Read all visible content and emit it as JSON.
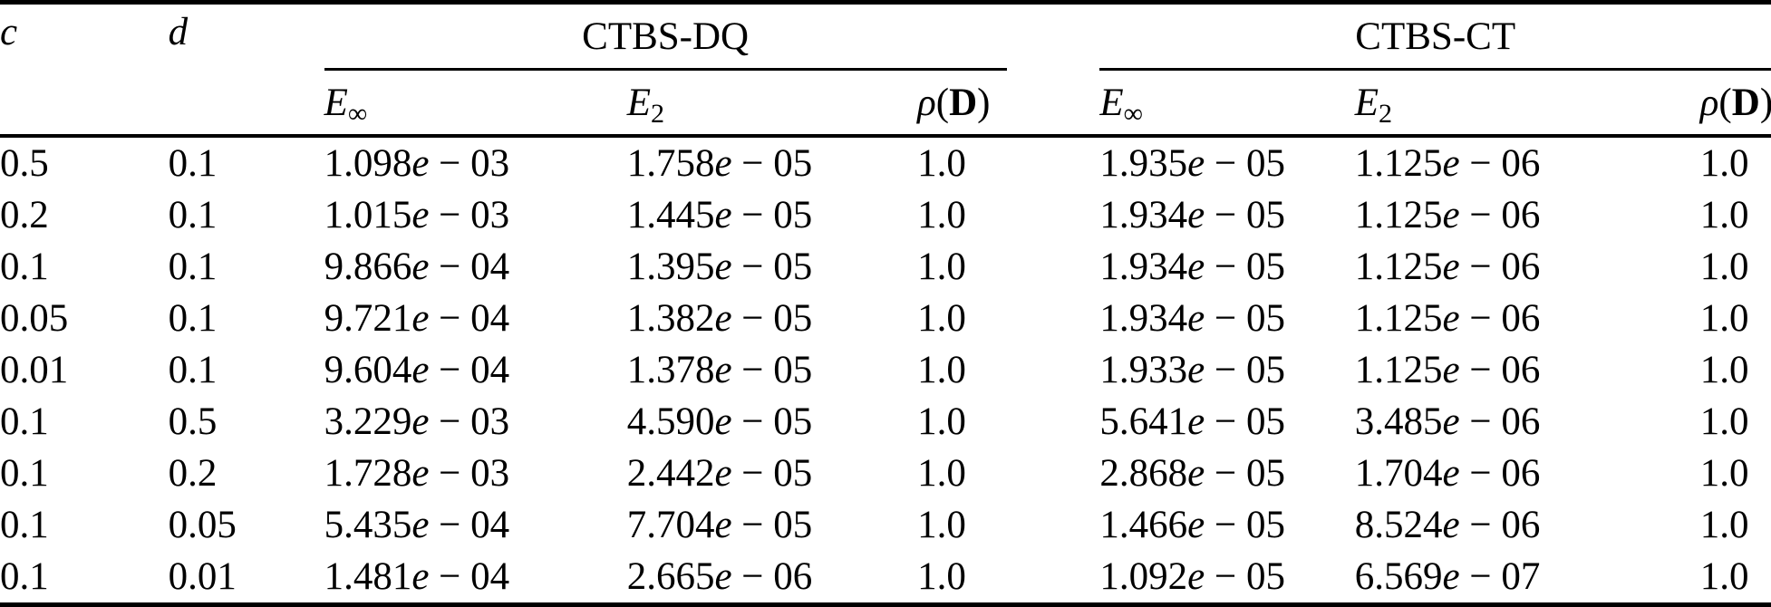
{
  "table": {
    "col_c": "c",
    "col_d": "d",
    "groups": [
      {
        "label": "CTBS-DQ"
      },
      {
        "label": "CTBS-CT"
      }
    ],
    "subheaders": [
      {
        "name": "e-infinity",
        "italic": "E",
        "sub": "∞"
      },
      {
        "name": "e-2",
        "italic": "E",
        "sub": "2"
      },
      {
        "name": "rho-D",
        "italic": "ρ",
        "open": "(",
        "bold": "D",
        "close": ")"
      }
    ],
    "rows": [
      {
        "c": "0.5",
        "d": "0.1",
        "dq": [
          "1.098e-03",
          "1.758e-05",
          "1.0"
        ],
        "ct": [
          "1.935e-05",
          "1.125e-06",
          "1.0"
        ]
      },
      {
        "c": "0.2",
        "d": "0.1",
        "dq": [
          "1.015e-03",
          "1.445e-05",
          "1.0"
        ],
        "ct": [
          "1.934e-05",
          "1.125e-06",
          "1.0"
        ]
      },
      {
        "c": "0.1",
        "d": "0.1",
        "dq": [
          "9.866e-04",
          "1.395e-05",
          "1.0"
        ],
        "ct": [
          "1.934e-05",
          "1.125e-06",
          "1.0"
        ]
      },
      {
        "c": "0.05",
        "d": "0.1",
        "dq": [
          "9.721e-04",
          "1.382e-05",
          "1.0"
        ],
        "ct": [
          "1.934e-05",
          "1.125e-06",
          "1.0"
        ]
      },
      {
        "c": "0.01",
        "d": "0.1",
        "dq": [
          "9.604e-04",
          "1.378e-05",
          "1.0"
        ],
        "ct": [
          "1.933e-05",
          "1.125e-06",
          "1.0"
        ]
      },
      {
        "c": "0.1",
        "d": "0.5",
        "dq": [
          "3.229e-03",
          "4.590e-05",
          "1.0"
        ],
        "ct": [
          "5.641e-05",
          "3.485e-06",
          "1.0"
        ]
      },
      {
        "c": "0.1",
        "d": "0.2",
        "dq": [
          "1.728e-03",
          "2.442e-05",
          "1.0"
        ],
        "ct": [
          "2.868e-05",
          "1.704e-06",
          "1.0"
        ]
      },
      {
        "c": "0.1",
        "d": "0.05",
        "dq": [
          "5.435e-04",
          "7.704e-05",
          "1.0"
        ],
        "ct": [
          "1.466e-05",
          "8.524e-06",
          "1.0"
        ]
      },
      {
        "c": "0.1",
        "d": "0.01",
        "dq": [
          "1.481e-04",
          "2.665e-06",
          "1.0"
        ],
        "ct": [
          "1.092e-05",
          "6.569e-07",
          "1.0"
        ]
      }
    ]
  }
}
